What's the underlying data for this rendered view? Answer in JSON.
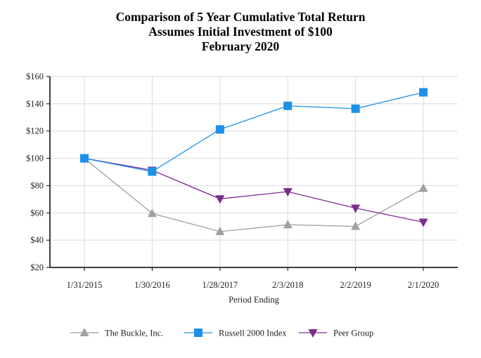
{
  "chart_data": {
    "type": "line",
    "title": "Comparison of 5 Year Cumulative Total Return",
    "subtitle": "Assumes Initial Investment of $100",
    "subtitle2": "February 2020",
    "xlabel": "Period Ending",
    "ylabel": "",
    "categories": [
      "1/31/2015",
      "1/30/2016",
      "1/28/2017",
      "2/3/2018",
      "2/2/2019",
      "2/1/2020"
    ],
    "ylim": [
      20,
      160
    ],
    "yticks": [
      20,
      40,
      60,
      80,
      100,
      120,
      140,
      160
    ],
    "ytick_labels": [
      "$20",
      "$40",
      "$60",
      "$80",
      "$100",
      "$120",
      "$140",
      "$160"
    ],
    "grid": true,
    "legend_position": "bottom",
    "series": [
      {
        "name": "The Buckle, Inc.",
        "values": [
          100,
          59.6,
          46.3,
          51.3,
          50.1,
          78.0
        ],
        "color": "#a0a0a0",
        "marker": "triangle-up"
      },
      {
        "name": "Russell 2000 Index",
        "values": [
          100,
          90.3,
          121.2,
          138.5,
          136.4,
          148.4
        ],
        "color": "#1e90e6",
        "marker": "square"
      },
      {
        "name": "Peer Group",
        "values": [
          100,
          91.3,
          70.3,
          75.6,
          63.5,
          53.2
        ],
        "color": "#7b2c8c",
        "marker": "triangle-down"
      }
    ]
  }
}
